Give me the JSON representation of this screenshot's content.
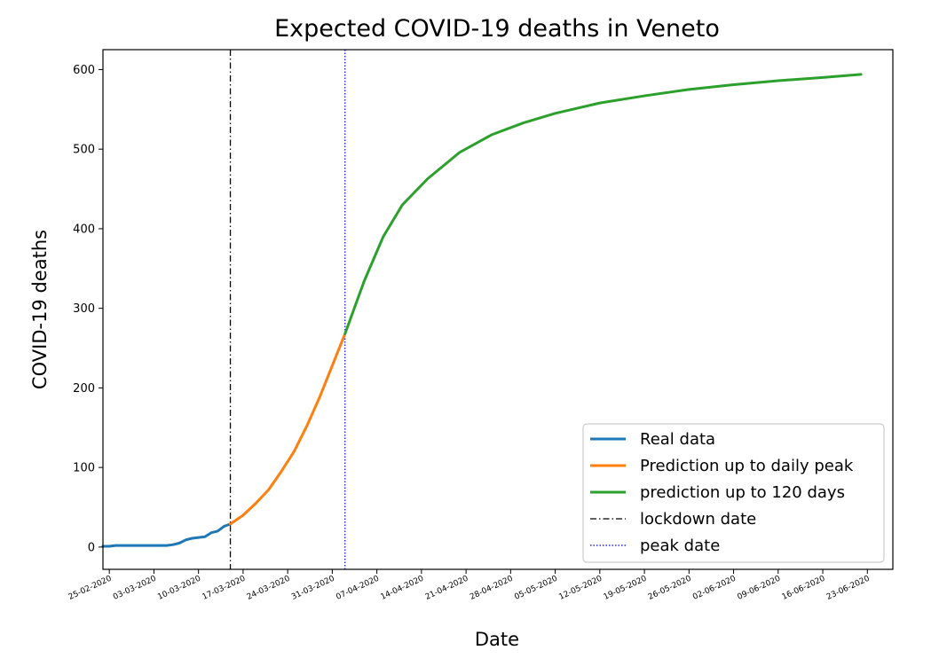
{
  "chart_data": {
    "type": "line",
    "title": "Expected COVID-19 deaths in Veneto",
    "xlabel": "Date",
    "ylabel": "COVID-19 deaths",
    "ylim": [
      -28,
      625
    ],
    "xlim": [
      "2020-02-24",
      "2020-06-27"
    ],
    "yticks": [
      0,
      100,
      200,
      300,
      400,
      500,
      600
    ],
    "xticks": [
      {
        "date": "2020-02-25",
        "label": "25-02-2020"
      },
      {
        "date": "2020-03-03",
        "label": "03-03-2020"
      },
      {
        "date": "2020-03-10",
        "label": "10-03-2020"
      },
      {
        "date": "2020-03-17",
        "label": "17-03-2020"
      },
      {
        "date": "2020-03-24",
        "label": "24-03-2020"
      },
      {
        "date": "2020-03-31",
        "label": "31-03-2020"
      },
      {
        "date": "2020-04-07",
        "label": "07-04-2020"
      },
      {
        "date": "2020-04-14",
        "label": "14-04-2020"
      },
      {
        "date": "2020-04-21",
        "label": "21-04-2020"
      },
      {
        "date": "2020-04-28",
        "label": "28-04-2020"
      },
      {
        "date": "2020-05-05",
        "label": "05-05-2020"
      },
      {
        "date": "2020-05-12",
        "label": "12-05-2020"
      },
      {
        "date": "2020-05-19",
        "label": "19-05-2020"
      },
      {
        "date": "2020-05-26",
        "label": "26-05-2020"
      },
      {
        "date": "2020-06-02",
        "label": "02-06-2020"
      },
      {
        "date": "2020-06-09",
        "label": "09-06-2020"
      },
      {
        "date": "2020-06-16",
        "label": "16-06-2020"
      },
      {
        "date": "2020-06-23",
        "label": "23-06-2020"
      }
    ],
    "legend_position": "lower-right",
    "grid": false,
    "series": [
      {
        "name": "Real data",
        "color": "#1f77b4",
        "style": "solid",
        "points": [
          [
            "2020-02-24",
            1
          ],
          [
            "2020-02-25",
            1
          ],
          [
            "2020-02-26",
            2
          ],
          [
            "2020-02-27",
            2
          ],
          [
            "2020-02-28",
            2
          ],
          [
            "2020-02-29",
            2
          ],
          [
            "2020-03-01",
            2
          ],
          [
            "2020-03-02",
            2
          ],
          [
            "2020-03-03",
            2
          ],
          [
            "2020-03-04",
            2
          ],
          [
            "2020-03-05",
            2
          ],
          [
            "2020-03-06",
            3
          ],
          [
            "2020-03-07",
            5
          ],
          [
            "2020-03-08",
            9
          ],
          [
            "2020-03-09",
            11
          ],
          [
            "2020-03-10",
            12
          ],
          [
            "2020-03-11",
            13
          ],
          [
            "2020-03-12",
            18
          ],
          [
            "2020-03-13",
            20
          ],
          [
            "2020-03-14",
            26
          ],
          [
            "2020-03-15",
            29
          ]
        ]
      },
      {
        "name": "Prediction up to daily peak",
        "color": "#ff7f0e",
        "style": "solid",
        "points": [
          [
            "2020-03-15",
            29
          ],
          [
            "2020-03-17",
            40
          ],
          [
            "2020-03-19",
            55
          ],
          [
            "2020-03-21",
            72
          ],
          [
            "2020-03-23",
            95
          ],
          [
            "2020-03-25",
            120
          ],
          [
            "2020-03-27",
            152
          ],
          [
            "2020-03-29",
            188
          ],
          [
            "2020-03-31",
            228
          ],
          [
            "2020-04-02",
            268
          ]
        ]
      },
      {
        "name": "prediction up to 120 days",
        "color": "#2ca02c",
        "style": "solid",
        "points": [
          [
            "2020-04-02",
            268
          ],
          [
            "2020-04-05",
            334
          ],
          [
            "2020-04-08",
            390
          ],
          [
            "2020-04-11",
            430
          ],
          [
            "2020-04-15",
            463
          ],
          [
            "2020-04-20",
            496
          ],
          [
            "2020-04-25",
            518
          ],
          [
            "2020-04-30",
            533
          ],
          [
            "2020-05-05",
            545
          ],
          [
            "2020-05-12",
            558
          ],
          [
            "2020-05-19",
            567
          ],
          [
            "2020-05-26",
            575
          ],
          [
            "2020-06-02",
            581
          ],
          [
            "2020-06-09",
            586
          ],
          [
            "2020-06-16",
            590
          ],
          [
            "2020-06-22",
            594
          ]
        ]
      }
    ],
    "vlines": [
      {
        "name": "lockdown date",
        "date": "2020-03-15",
        "color": "#000000",
        "style": "dashdot"
      },
      {
        "name": "peak date",
        "date": "2020-04-02",
        "color": "#0000ff",
        "style": "dotted"
      }
    ]
  }
}
